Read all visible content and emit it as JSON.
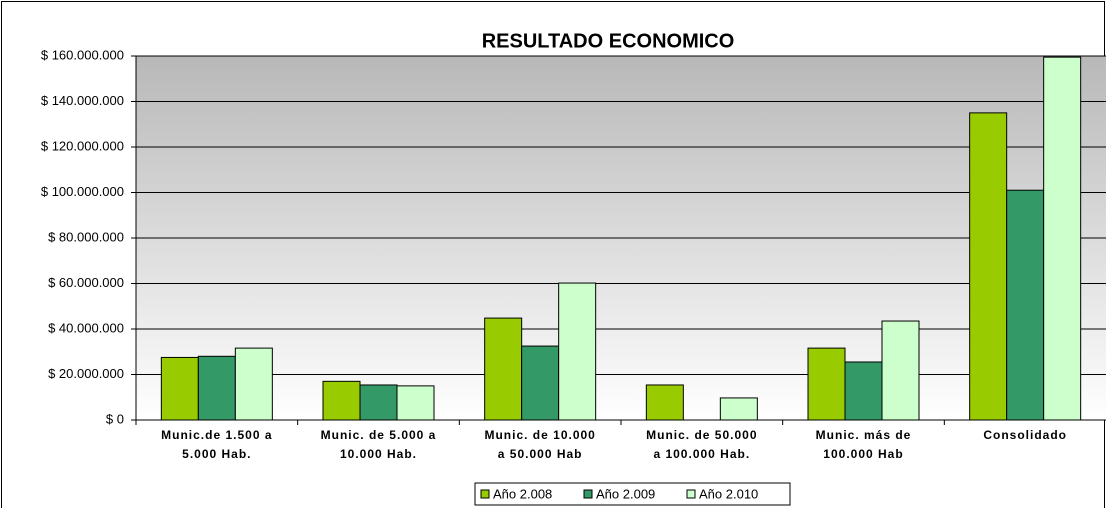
{
  "chart_data": {
    "type": "bar",
    "title": "RESULTADO ECONOMICO",
    "categories": [
      "Munic.de 1.500 a\n5.000 Hab.",
      "Munic. de 5.000 a\n10.000 Hab.",
      "Munic. de 10.000\na 50.000 Hab",
      "Munic. de 50.000\na 100.000 Hab.",
      "Munic.  más de\n100.000 Hab",
      "Consolidado"
    ],
    "series": [
      {
        "name": "Año 2.008",
        "color": "#99cc00",
        "values": [
          27500000,
          17000000,
          44800000,
          15400000,
          31600000,
          135000000
        ]
      },
      {
        "name": "Año 2.009",
        "color": "#339966",
        "values": [
          28000000,
          15400000,
          32500000,
          null,
          25500000,
          101000000
        ]
      },
      {
        "name": "Año 2.010",
        "color": "#ccffcc",
        "values": [
          31600000,
          15000000,
          60200000,
          9700000,
          43500000,
          159500000
        ]
      }
    ],
    "ylim": [
      0,
      160000000
    ],
    "yticks": [
      {
        "value": 0,
        "label": "$ 0"
      },
      {
        "value": 20000000,
        "label": "$ 20.000.000"
      },
      {
        "value": 40000000,
        "label": "$ 40.000.000"
      },
      {
        "value": 60000000,
        "label": "$ 60.000.000"
      },
      {
        "value": 80000000,
        "label": "$ 80.000.000"
      },
      {
        "value": 100000000,
        "label": "$ 100.000.000"
      },
      {
        "value": 120000000,
        "label": "$ 120.000.000"
      },
      {
        "value": 140000000,
        "label": "$ 140.000.000"
      },
      {
        "value": 160000000,
        "label": "$ 160.000.000"
      }
    ],
    "grid": true,
    "legend": "bottom"
  }
}
